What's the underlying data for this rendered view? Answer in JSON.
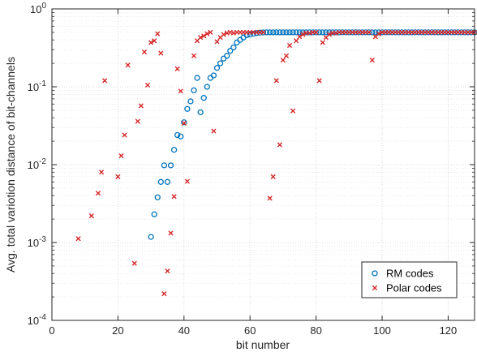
{
  "chart_data": {
    "type": "scatter",
    "xlabel": "bit number",
    "ylabel": "Avg. total variotion distance of bit-channels",
    "xlim": [
      0,
      128
    ],
    "ylim": [
      0.0001,
      1
    ],
    "yscale": "log",
    "grid": true,
    "legend_position": "bottom-right",
    "x_ticks": [
      {
        "value": 0,
        "label": "0"
      },
      {
        "value": 20,
        "label": "20"
      },
      {
        "value": 40,
        "label": "40"
      },
      {
        "value": 60,
        "label": "60"
      },
      {
        "value": 80,
        "label": "80"
      },
      {
        "value": 100,
        "label": "100"
      },
      {
        "value": 120,
        "label": "120"
      }
    ],
    "y_ticks": [
      {
        "value": 0.0001,
        "base": "10",
        "exp": "-4"
      },
      {
        "value": 0.001,
        "base": "10",
        "exp": "-3"
      },
      {
        "value": 0.01,
        "base": "10",
        "exp": "-2"
      },
      {
        "value": 0.1,
        "base": "10",
        "exp": "-1"
      },
      {
        "value": 1,
        "base": "10",
        "exp": "0"
      }
    ],
    "series": [
      {
        "name": "RM codes",
        "marker": "circle",
        "color": "#0072BD",
        "points": [
          [
            30,
            0.00118
          ],
          [
            31,
            0.0023
          ],
          [
            32,
            0.0038
          ],
          [
            33,
            0.006
          ],
          [
            34,
            0.0098
          ],
          [
            35,
            0.006
          ],
          [
            36,
            0.0098
          ],
          [
            37,
            0.0155
          ],
          [
            38,
            0.024
          ],
          [
            39,
            0.023
          ],
          [
            40,
            0.035
          ],
          [
            41,
            0.052
          ],
          [
            42,
            0.065
          ],
          [
            43,
            0.09
          ],
          [
            44,
            0.13
          ],
          [
            45,
            0.047
          ],
          [
            46,
            0.072
          ],
          [
            47,
            0.1
          ],
          [
            48,
            0.13
          ],
          [
            49,
            0.14
          ],
          [
            50,
            0.175
          ],
          [
            51,
            0.2
          ],
          [
            52,
            0.23
          ],
          [
            53,
            0.25
          ],
          [
            54,
            0.29
          ],
          [
            55,
            0.32
          ],
          [
            56,
            0.37
          ],
          [
            57,
            0.4
          ],
          [
            58,
            0.43
          ],
          [
            59,
            0.46
          ],
          [
            60,
            0.47
          ],
          [
            61,
            0.48
          ],
          [
            62,
            0.49
          ],
          [
            63,
            0.495
          ],
          [
            64,
            0.498
          ],
          [
            65,
            0.5
          ],
          [
            66,
            0.5
          ],
          [
            67,
            0.5
          ],
          [
            68,
            0.5
          ],
          [
            69,
            0.5
          ],
          [
            70,
            0.5
          ],
          [
            71,
            0.5
          ],
          [
            72,
            0.5
          ],
          [
            73,
            0.5
          ],
          [
            74,
            0.5
          ],
          [
            75,
            0.5
          ],
          [
            76,
            0.5
          ],
          [
            77,
            0.5
          ],
          [
            78,
            0.5
          ],
          [
            79,
            0.5
          ],
          [
            80,
            0.5
          ],
          [
            81,
            0.5
          ],
          [
            82,
            0.5
          ],
          [
            83,
            0.5
          ],
          [
            84,
            0.5
          ],
          [
            85,
            0.5
          ],
          [
            86,
            0.5
          ],
          [
            87,
            0.5
          ],
          [
            88,
            0.5
          ],
          [
            89,
            0.5
          ],
          [
            90,
            0.5
          ],
          [
            91,
            0.5
          ],
          [
            92,
            0.5
          ],
          [
            93,
            0.5
          ],
          [
            94,
            0.5
          ],
          [
            95,
            0.5
          ],
          [
            96,
            0.5
          ],
          [
            97,
            0.5
          ],
          [
            98,
            0.5
          ],
          [
            99,
            0.5
          ],
          [
            100,
            0.5
          ],
          [
            101,
            0.5
          ],
          [
            102,
            0.5
          ],
          [
            103,
            0.5
          ],
          [
            104,
            0.5
          ],
          [
            105,
            0.5
          ],
          [
            106,
            0.5
          ],
          [
            107,
            0.5
          ],
          [
            108,
            0.5
          ],
          [
            109,
            0.5
          ],
          [
            110,
            0.5
          ],
          [
            111,
            0.5
          ],
          [
            112,
            0.5
          ],
          [
            113,
            0.5
          ],
          [
            114,
            0.5
          ],
          [
            115,
            0.5
          ],
          [
            116,
            0.5
          ],
          [
            117,
            0.5
          ],
          [
            118,
            0.5
          ],
          [
            119,
            0.5
          ],
          [
            120,
            0.5
          ],
          [
            121,
            0.5
          ],
          [
            122,
            0.5
          ],
          [
            123,
            0.5
          ],
          [
            124,
            0.5
          ],
          [
            125,
            0.5
          ],
          [
            126,
            0.5
          ],
          [
            127,
            0.5
          ],
          [
            128,
            0.5
          ]
        ]
      },
      {
        "name": "Polar codes",
        "marker": "x",
        "color": "#D62728",
        "points": [
          [
            8,
            0.00112
          ],
          [
            12,
            0.0022
          ],
          [
            14,
            0.0043
          ],
          [
            15,
            0.008
          ],
          [
            16,
            0.12
          ],
          [
            20,
            0.007
          ],
          [
            21,
            0.013
          ],
          [
            22,
            0.024
          ],
          [
            23,
            0.19
          ],
          [
            25,
            0.00054
          ],
          [
            26,
            0.036
          ],
          [
            27,
            0.057
          ],
          [
            28,
            0.28
          ],
          [
            29,
            0.105
          ],
          [
            30,
            0.37
          ],
          [
            31,
            0.39
          ],
          [
            32,
            0.48
          ],
          [
            33,
            0.27
          ],
          [
            34,
            0.00022
          ],
          [
            35,
            0.00043
          ],
          [
            36,
            0.00132
          ],
          [
            37,
            0.0039
          ],
          [
            38,
            0.17
          ],
          [
            39,
            0.088
          ],
          [
            40,
            0.034
          ],
          [
            41,
            0.0061
          ],
          [
            43,
            0.25
          ],
          [
            44,
            0.39
          ],
          [
            45,
            0.43
          ],
          [
            46,
            0.45
          ],
          [
            47,
            0.48
          ],
          [
            48,
            0.5
          ],
          [
            49,
            0.027
          ],
          [
            50,
            0.38
          ],
          [
            51,
            0.43
          ],
          [
            52,
            0.47
          ],
          [
            53,
            0.49
          ],
          [
            54,
            0.5
          ],
          [
            55,
            0.49
          ],
          [
            56,
            0.5
          ],
          [
            57,
            0.5
          ],
          [
            58,
            0.5
          ],
          [
            59,
            0.5
          ],
          [
            60,
            0.5
          ],
          [
            61,
            0.5
          ],
          [
            62,
            0.5
          ],
          [
            63,
            0.5
          ],
          [
            64,
            0.5
          ],
          [
            66,
            0.0037
          ],
          [
            67,
            0.007
          ],
          [
            68,
            0.12
          ],
          [
            69,
            0.018
          ],
          [
            70,
            0.22
          ],
          [
            71,
            0.25
          ],
          [
            72,
            0.34
          ],
          [
            73,
            0.049
          ],
          [
            74,
            0.39
          ],
          [
            75,
            0.44
          ],
          [
            76,
            0.47
          ],
          [
            77,
            0.49
          ],
          [
            78,
            0.49
          ],
          [
            79,
            0.5
          ],
          [
            80,
            0.5
          ],
          [
            81,
            0.12
          ],
          [
            82,
            0.37
          ],
          [
            83,
            0.43
          ],
          [
            84,
            0.47
          ],
          [
            85,
            0.49
          ],
          [
            86,
            0.49
          ],
          [
            87,
            0.5
          ],
          [
            88,
            0.5
          ],
          [
            89,
            0.5
          ],
          [
            90,
            0.5
          ],
          [
            91,
            0.5
          ],
          [
            92,
            0.5
          ],
          [
            93,
            0.5
          ],
          [
            94,
            0.5
          ],
          [
            95,
            0.5
          ],
          [
            96,
            0.5
          ],
          [
            97,
            0.22
          ],
          [
            98,
            0.44
          ],
          [
            99,
            0.48
          ],
          [
            100,
            0.5
          ],
          [
            101,
            0.5
          ],
          [
            102,
            0.5
          ],
          [
            103,
            0.5
          ],
          [
            104,
            0.5
          ],
          [
            105,
            0.5
          ],
          [
            106,
            0.5
          ],
          [
            107,
            0.5
          ],
          [
            108,
            0.5
          ],
          [
            109,
            0.5
          ],
          [
            110,
            0.5
          ],
          [
            111,
            0.5
          ],
          [
            112,
            0.5
          ],
          [
            113,
            0.5
          ],
          [
            114,
            0.5
          ],
          [
            115,
            0.5
          ],
          [
            116,
            0.5
          ],
          [
            117,
            0.5
          ],
          [
            118,
            0.5
          ],
          [
            119,
            0.5
          ],
          [
            120,
            0.5
          ],
          [
            121,
            0.5
          ],
          [
            122,
            0.5
          ],
          [
            123,
            0.5
          ],
          [
            124,
            0.5
          ],
          [
            125,
            0.5
          ],
          [
            126,
            0.5
          ],
          [
            127,
            0.5
          ],
          [
            128,
            0.5
          ]
        ]
      }
    ]
  }
}
